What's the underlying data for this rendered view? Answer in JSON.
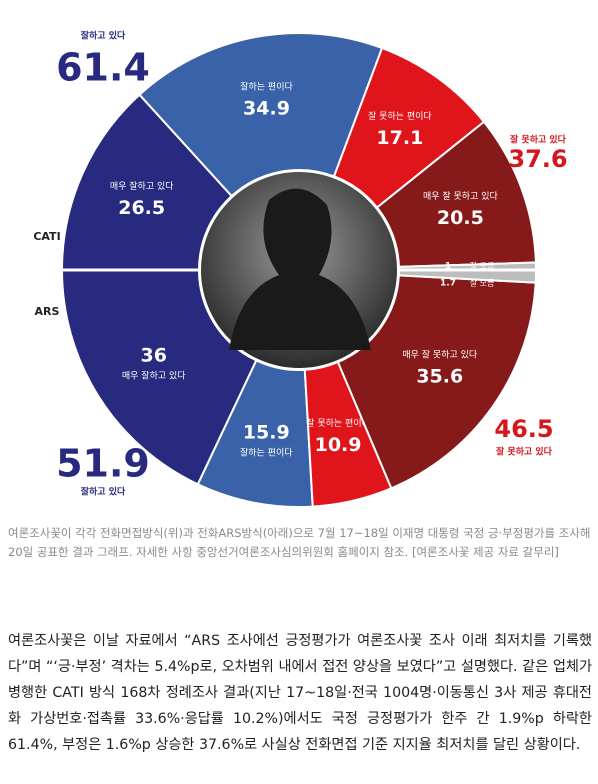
{
  "chart_data": {
    "type": "donut",
    "series": [
      {
        "name": "CATI",
        "half": "top",
        "categories": [
          "매우 잘하고 있다",
          "잘하는 편이다",
          "잘 못하는 편이다",
          "매우 잘 못하고 있다",
          "잘 모름"
        ],
        "values": [
          26.5,
          34.9,
          17.1,
          20.5,
          1.0
        ],
        "colors": [
          "#272a7e",
          "#3a62a8",
          "#e0141b",
          "#861a1a",
          "#bdbdbd"
        ],
        "totals": [
          {
            "label": "잘하고 있다",
            "value": 61.4,
            "color": "#272a7e"
          },
          {
            "label": "잘 못하고 있다",
            "value": 37.6,
            "color": "#d6161d"
          }
        ]
      },
      {
        "name": "ARS",
        "half": "bottom",
        "categories": [
          "매우 잘하고 있다",
          "잘하는 편이다",
          "잘 못하는 편이다",
          "매우 잘 못하고 있다",
          "잘 모름"
        ],
        "values": [
          36.0,
          15.9,
          10.9,
          35.6,
          1.7
        ],
        "colors": [
          "#272a7e",
          "#3a62a8",
          "#e0141b",
          "#861a1a",
          "#bdbdbd"
        ],
        "totals": [
          {
            "label": "잘하고 있다",
            "value": 51.9,
            "color": "#272a7e"
          },
          {
            "label": "잘 못하고 있다",
            "value": 46.5,
            "color": "#d6161d"
          }
        ]
      }
    ]
  },
  "caption": "여론조사꽃이 각각 전화면접방식(위)과 전화ARS방식(아래)으로 7월 17~18일 이재명 대통령 국정 긍·부정평가를 조사해 20일 공표한 결과 그래프. 자세한 사항 중앙선거여론조사심의위원회 홈페이지 참조. [여론조사꽃 제공 자료 갈무리]",
  "body": "여론조사꽃은 이날 자료에서 “ARS 조사에선 긍정평가가 여론조사꽃 조사 이래 최저치를 기록했다”며 “‘긍·부정’ 격차는 5.4%p로, 오차범위 내에서 접전 양상을 보였다”고 설명했다. 같은 업체가 병행한 CATI 방식 168차 정례조사 결과(지난 17~18일·전국 1004명·이동통신 3사 제공 휴대전화 가상번호·접촉률 33.6%·응답률 10.2%)에서도 국정 긍정평가가 한주 간 1.9%p 하락한 61.4%, 부정은 1.6%p 상승한 37.6%로 사실상 전화면접 기준 지지율 최저치를 달린 상황이다."
}
